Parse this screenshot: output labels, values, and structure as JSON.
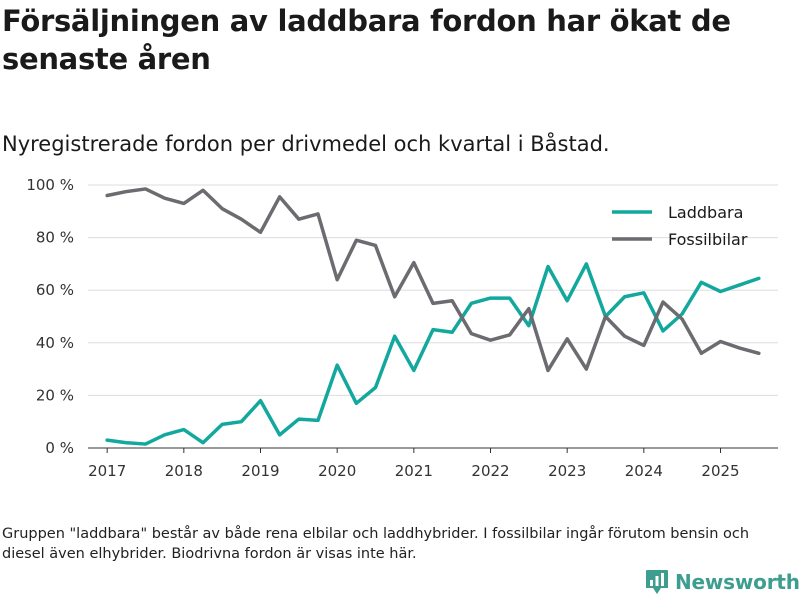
{
  "header": {
    "title": "Försäljningen av laddbara fordon har ökat de senaste åren",
    "subtitle": "Nyregistrerade fordon per drivmedel och kvartal i Båstad."
  },
  "footer": {
    "note": "Gruppen \"laddbara\" består av både rena elbilar och laddhybrider. I fossilbilar ingår förutom bensin och diesel även elhybrider. Biodrivna fordon är visas inte här.",
    "brand": "Newsworthy",
    "brand_icon": "bar-chart-logo-icon"
  },
  "colors": {
    "laddbara": "#13a89e",
    "fossilbilar": "#6b6b70",
    "grid": "#dddddd",
    "brand": "#3d9e8f"
  },
  "chart_data": {
    "type": "line",
    "title": "Nyregistrerade fordon per drivmedel och kvartal i Båstad.",
    "xlabel": "",
    "ylabel": "",
    "ylim": [
      0,
      100
    ],
    "xlim": [
      2016.75,
      2025.75
    ],
    "y_ticks": [
      0,
      20,
      40,
      60,
      80,
      100
    ],
    "y_tick_labels": [
      "0 %",
      "20 %",
      "40 %",
      "60 %",
      "80 %",
      "100 %"
    ],
    "x_ticks": [
      2017,
      2018,
      2019,
      2020,
      2021,
      2022,
      2023,
      2024,
      2025
    ],
    "x_tick_labels": [
      "2017",
      "2018",
      "2019",
      "2020",
      "2021",
      "2022",
      "2023",
      "2024",
      "2025"
    ],
    "legend_position": "top-right",
    "grid": true,
    "x": [
      2017,
      2017.25,
      2017.5,
      2017.75,
      2018,
      2018.25,
      2018.5,
      2018.75,
      2019,
      2019.25,
      2019.5,
      2019.75,
      2020,
      2020.25,
      2020.5,
      2020.75,
      2021,
      2021.25,
      2021.5,
      2021.75,
      2022,
      2022.25,
      2022.5,
      2022.75,
      2023,
      2023.25,
      2023.5,
      2023.75,
      2024,
      2024.25,
      2024.5,
      2024.75,
      2025,
      2025.25,
      2025.5
    ],
    "series": [
      {
        "name": "Laddbara",
        "color": "#13a89e",
        "values": [
          3,
          2,
          1.5,
          5,
          7,
          2,
          9,
          10,
          18,
          5,
          11,
          10.5,
          31.5,
          17,
          23,
          42.5,
          29.5,
          45,
          44,
          55,
          57,
          57,
          46.5,
          69,
          56,
          70,
          50,
          57.5,
          59,
          44.5,
          51,
          63,
          59.5,
          62,
          64.5
        ]
      },
      {
        "name": "Fossilbilar",
        "color": "#6b6b70",
        "values": [
          96,
          97.5,
          98.5,
          95,
          93,
          98,
          91,
          87,
          82,
          95.5,
          87,
          89,
          64,
          79,
          77,
          57.5,
          70.5,
          55,
          56,
          43.5,
          41,
          43,
          53,
          29.5,
          41.5,
          30,
          50,
          42.5,
          39,
          55.5,
          49,
          36,
          40.5,
          38,
          36
        ]
      }
    ]
  }
}
